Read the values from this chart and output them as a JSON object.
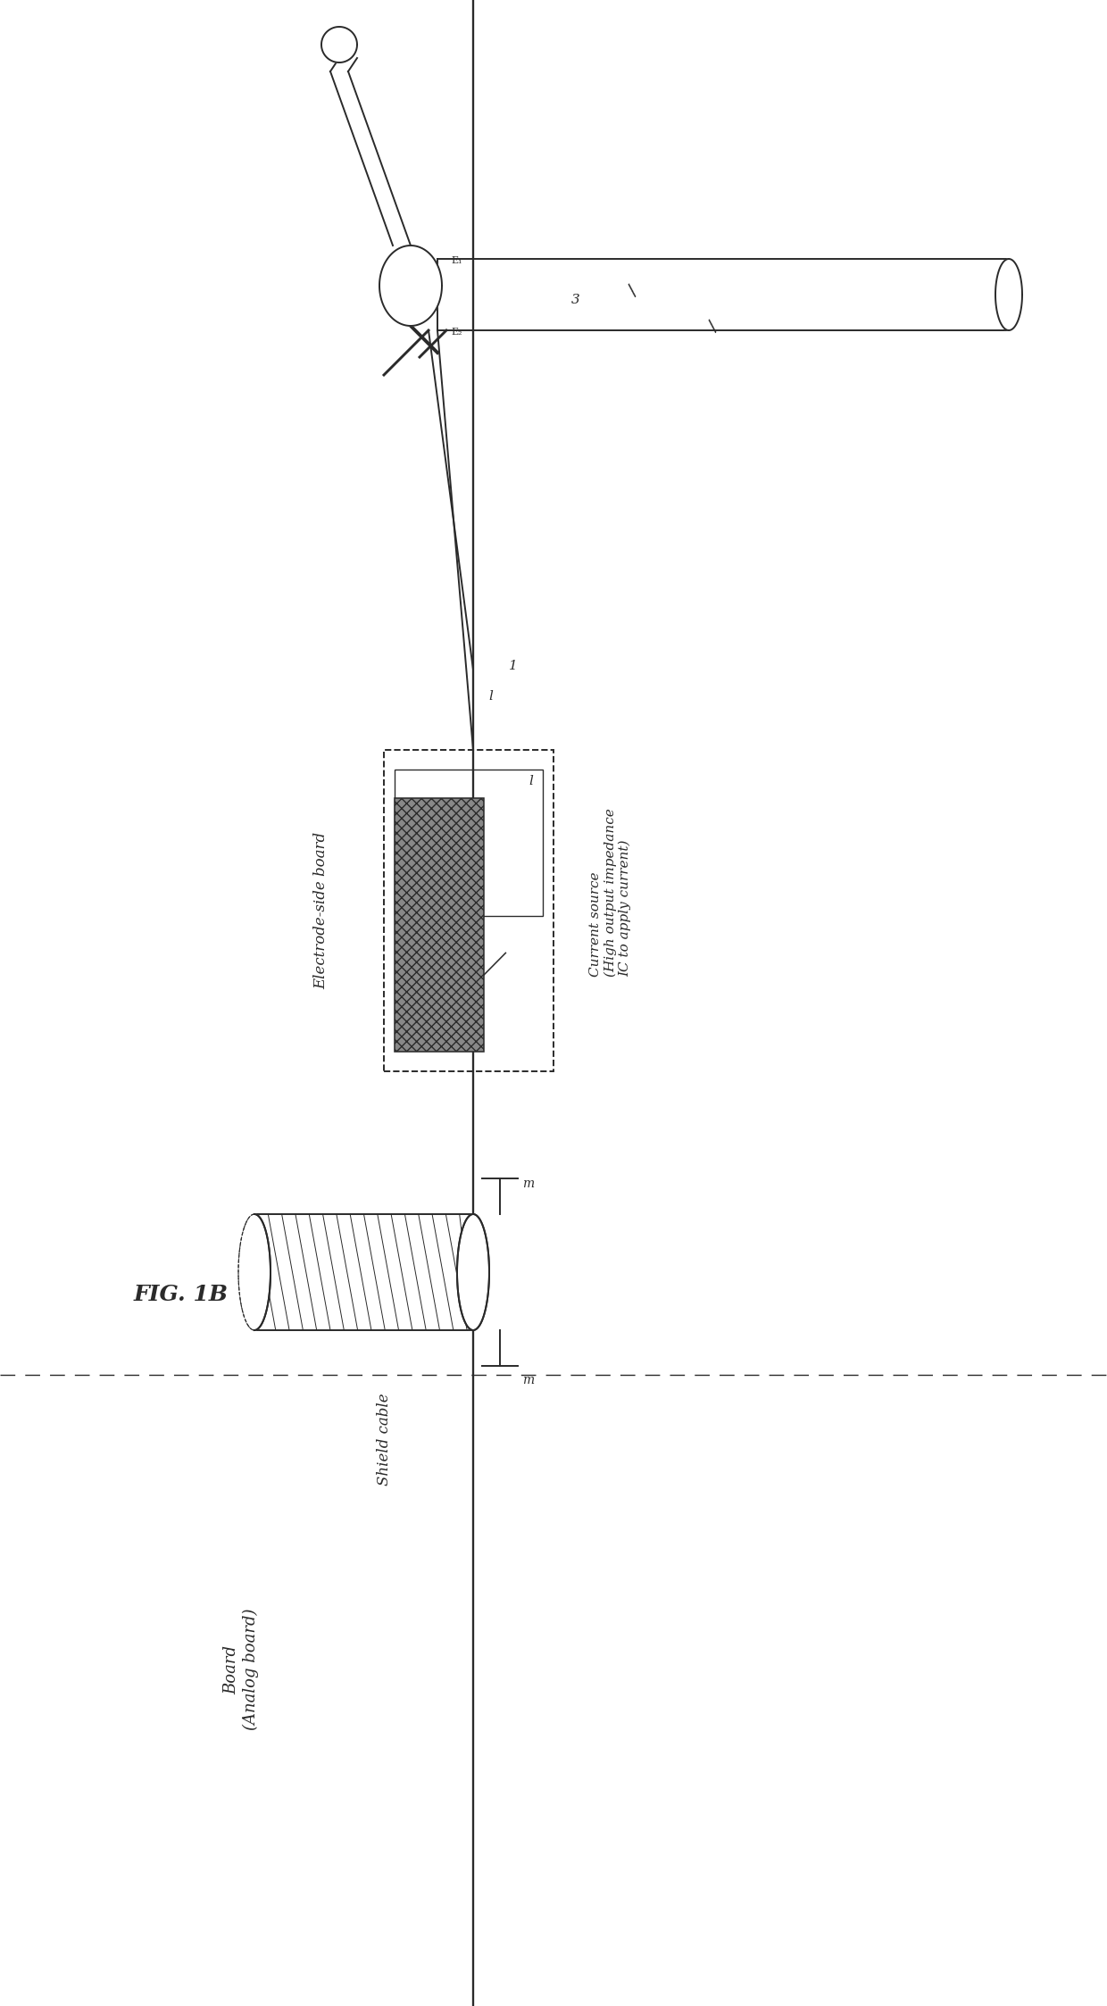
{
  "background_color": "#ffffff",
  "fig_width": 12.4,
  "fig_height": 22.47,
  "line_color": "#2a2a2a",
  "fig_label": "FIG. 1B",
  "label_board": "Board\n(Analog board)",
  "label_shield": "Shield cable",
  "label_electrode": "Electrode-side board",
  "label_current": "Current source\n(High output impedance\nIC to apply current)",
  "label_l": "l",
  "label_m1": "m",
  "label_m2": "m",
  "label_1": "1",
  "label_1b": "1"
}
